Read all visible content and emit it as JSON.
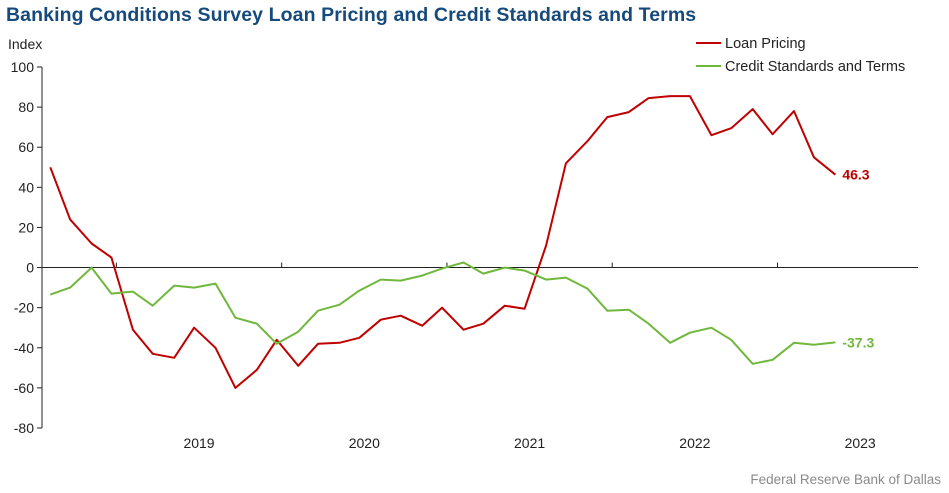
{
  "title": "Banking Conditions Survey Loan Pricing and Credit Standards and Terms",
  "source": "Federal Reserve Bank of Dallas",
  "chart_data": {
    "type": "line",
    "ylabel": "Index",
    "ylim": [
      -80,
      100
    ],
    "yticks": [
      -80,
      -60,
      -40,
      -20,
      0,
      20,
      40,
      60,
      80,
      100
    ],
    "xlim": [
      2018.55,
      2023.85
    ],
    "year_labels": [
      "2019",
      "2020",
      "2021",
      "2022",
      "2023"
    ],
    "legend_position": "top-right",
    "grid": false,
    "series": [
      {
        "name": "Loan Pricing",
        "color": "#c00000",
        "end_label": "46.3",
        "x": [
          2018.6,
          2018.72,
          2018.85,
          2018.97,
          2019.1,
          2019.22,
          2019.35,
          2019.47,
          2019.6,
          2019.72,
          2019.85,
          2019.97,
          2020.1,
          2020.22,
          2020.35,
          2020.47,
          2020.6,
          2020.72,
          2020.85,
          2020.97,
          2021.1,
          2021.22,
          2021.35,
          2021.47,
          2021.6,
          2021.72,
          2021.85,
          2021.97,
          2022.1,
          2022.22,
          2022.35,
          2022.47,
          2022.6,
          2022.72,
          2022.85,
          2022.97,
          2023.1,
          2023.22,
          2023.35
        ],
        "values": [
          50,
          24,
          12,
          5,
          -31,
          -43,
          -45,
          -30,
          -40,
          -60,
          -51,
          -36,
          -49,
          -38,
          -37.5,
          -35,
          -26,
          -24,
          -29,
          -20,
          -31,
          -28,
          -19,
          -20.5,
          11,
          52,
          63,
          75,
          77.5,
          84.5,
          85.5,
          85.5,
          66,
          69.5,
          79,
          66.5,
          78,
          55,
          46.3
        ]
      },
      {
        "name": "Credit Standards and Terms",
        "color": "#70b83c",
        "end_label": "-37.3",
        "x": [
          2018.6,
          2018.72,
          2018.85,
          2018.97,
          2019.1,
          2019.22,
          2019.35,
          2019.47,
          2019.6,
          2019.72,
          2019.85,
          2019.97,
          2020.1,
          2020.22,
          2020.35,
          2020.47,
          2020.6,
          2020.72,
          2020.85,
          2020.97,
          2021.1,
          2021.22,
          2021.35,
          2021.47,
          2021.6,
          2021.72,
          2021.85,
          2021.97,
          2022.1,
          2022.22,
          2022.35,
          2022.47,
          2022.6,
          2022.72,
          2022.85,
          2022.97,
          2023.1,
          2023.22,
          2023.35
        ],
        "values": [
          -13.5,
          -10,
          0,
          -13,
          -12,
          -19,
          -9,
          -10,
          -8,
          -25,
          -28,
          -38,
          -32,
          -21.5,
          -18.5,
          -11.5,
          -6,
          -6.5,
          -4,
          -0.5,
          2.5,
          -3,
          0,
          -1.5,
          -6,
          -5,
          -10.5,
          -21.5,
          -21,
          -28,
          -37.5,
          -32.5,
          -30,
          -36,
          -48,
          -46,
          -37.5,
          -38.5,
          -37.3
        ]
      }
    ]
  }
}
